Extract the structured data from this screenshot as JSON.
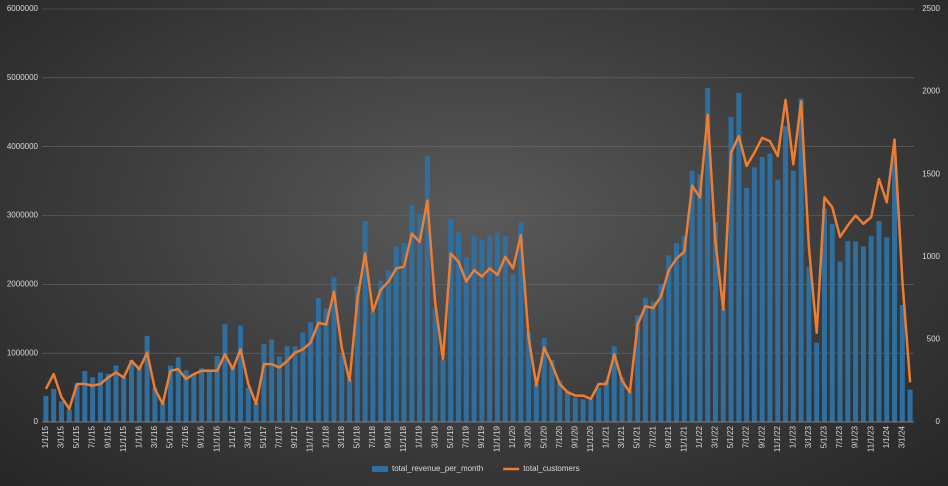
{
  "chart_data": {
    "type": "combo",
    "categories": [
      "1/1/15",
      null,
      "3/1/15",
      null,
      "5/1/15",
      null,
      "7/1/15",
      null,
      "9/1/15",
      null,
      "11/1/15",
      null,
      "1/1/16",
      null,
      "3/1/16",
      null,
      "5/1/16",
      null,
      "7/1/16",
      null,
      "9/1/16",
      null,
      "11/1/16",
      null,
      "1/1/17",
      null,
      "3/1/17",
      null,
      "5/1/17",
      null,
      "7/1/17",
      null,
      "9/1/17",
      null,
      "11/1/17",
      null,
      "1/1/18",
      null,
      "3/1/18",
      null,
      "5/1/18",
      null,
      "7/1/18",
      null,
      "9/1/18",
      null,
      "11/1/18",
      null,
      "1/1/19",
      null,
      "3/1/19",
      null,
      "5/1/19",
      null,
      "7/1/19",
      null,
      "9/1/19",
      null,
      "11/1/19",
      null,
      "1/1/20",
      null,
      "3/1/20",
      null,
      "5/1/20",
      null,
      "7/1/20",
      null,
      "9/1/20",
      null,
      "11/1/20",
      null,
      "1/1/21",
      null,
      "3/1/21",
      null,
      "5/1/21",
      null,
      "7/1/21",
      null,
      "9/1/21",
      null,
      "11/1/21",
      null,
      "1/1/22",
      null,
      "3/1/22",
      null,
      "5/1/22",
      null,
      "7/1/22",
      null,
      "9/1/22",
      null,
      "11/1/22",
      null,
      "1/1/23",
      null,
      "3/1/23",
      null,
      "5/1/23",
      null,
      "7/1/23",
      null,
      "9/1/23",
      null,
      "11/1/23",
      null,
      "1/1/24",
      null,
      "3/1/24",
      null
    ],
    "series": [
      {
        "name": "total_revenue_per_month",
        "type": "bar",
        "color": "#2f6f9f",
        "values": [
          380000,
          480000,
          300000,
          180000,
          560000,
          740000,
          650000,
          720000,
          700000,
          820000,
          650000,
          900000,
          820000,
          1250000,
          500000,
          280000,
          820000,
          940000,
          750000,
          700000,
          780000,
          760000,
          960000,
          1420000,
          800000,
          1400000,
          500000,
          280000,
          1130000,
          1200000,
          950000,
          1100000,
          1100000,
          1300000,
          1450000,
          1800000,
          1650000,
          2100000,
          1000000,
          620000,
          1980000,
          2920000,
          1600000,
          2050000,
          2200000,
          2550000,
          2600000,
          3150000,
          3020000,
          3870000,
          1650000,
          900000,
          2950000,
          2750000,
          2400000,
          2700000,
          2650000,
          2700000,
          2750000,
          2700000,
          2150000,
          2900000,
          1300000,
          550000,
          1220000,
          900000,
          600000,
          450000,
          350000,
          330000,
          330000,
          500000,
          600000,
          1100000,
          650000,
          450000,
          1550000,
          1800000,
          1750000,
          2000000,
          2420000,
          2600000,
          2700000,
          3650000,
          3600000,
          4850000,
          2900000,
          1650000,
          4430000,
          4780000,
          3400000,
          3700000,
          3850000,
          3900000,
          3520000,
          4300000,
          3650000,
          4700000,
          2250000,
          1150000,
          3100000,
          2880000,
          2330000,
          2630000,
          2620000,
          2550000,
          2700000,
          2920000,
          2680000,
          3850000,
          1700000,
          470000
        ]
      },
      {
        "name": "total_customers",
        "type": "line",
        "axis": "y2",
        "color": "#ed7d31",
        "values": [
          200,
          290,
          150,
          80,
          230,
          230,
          220,
          230,
          270,
          300,
          270,
          370,
          320,
          420,
          200,
          110,
          310,
          320,
          260,
          290,
          310,
          310,
          310,
          410,
          320,
          440,
          230,
          110,
          350,
          350,
          330,
          370,
          420,
          440,
          480,
          600,
          590,
          790,
          450,
          250,
          740,
          1020,
          670,
          800,
          850,
          930,
          940,
          1140,
          1090,
          1340,
          720,
          380,
          1020,
          970,
          850,
          920,
          880,
          930,
          890,
          1000,
          930,
          1130,
          510,
          220,
          450,
          350,
          230,
          180,
          160,
          160,
          140,
          230,
          230,
          410,
          250,
          180,
          590,
          700,
          690,
          760,
          920,
          990,
          1030,
          1430,
          1360,
          1860,
          1090,
          680,
          1630,
          1730,
          1550,
          1630,
          1720,
          1700,
          1610,
          1950,
          1560,
          1940,
          1060,
          540,
          1360,
          1300,
          1120,
          1190,
          1250,
          1200,
          1240,
          1470,
          1330,
          1710,
          860,
          240
        ]
      }
    ],
    "ylim": [
      0,
      6000000
    ],
    "yticks": [
      0,
      1000000,
      2000000,
      3000000,
      4000000,
      5000000,
      6000000
    ],
    "y2lim": [
      0,
      2500
    ],
    "y2ticks": [
      0,
      500,
      1000,
      1500,
      2000,
      2500
    ],
    "grid": true,
    "legend": "bottom"
  }
}
